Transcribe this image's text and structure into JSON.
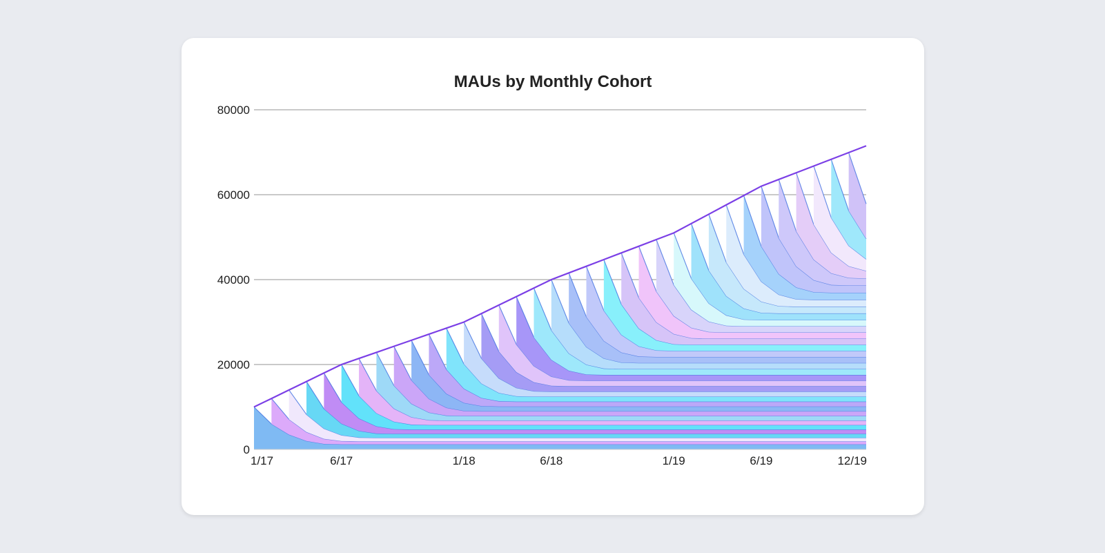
{
  "chart_data": {
    "type": "area",
    "title": "MAUs by Monthly Cohort",
    "xlabel": "",
    "ylabel": "",
    "ylim": [
      0,
      80000
    ],
    "y_ticks": [
      "0",
      "20000",
      "40000",
      "60000",
      "80000"
    ],
    "x_tick_labels": [
      {
        "label": "1/17",
        "month": "2017-01"
      },
      {
        "label": "6/17",
        "month": "2017-06"
      },
      {
        "label": "1/18",
        "month": "2018-01"
      },
      {
        "label": "6/18",
        "month": "2018-06"
      },
      {
        "label": "1/19",
        "month": "2019-01"
      },
      {
        "label": "6/19",
        "month": "2019-06"
      },
      {
        "label": "12/19",
        "month": "2019-12"
      }
    ],
    "x_range": [
      "2017-01",
      "2019-12"
    ],
    "grid": true,
    "stacked": true,
    "total_mau": [
      {
        "month": "2017-01",
        "value": 10000
      },
      {
        "month": "2017-06",
        "value": 20000
      },
      {
        "month": "2018-01",
        "value": 30000
      },
      {
        "month": "2018-06",
        "value": 40000
      },
      {
        "month": "2019-01",
        "value": 51000
      },
      {
        "month": "2019-06",
        "value": 62000
      },
      {
        "month": "2019-12",
        "value": 71500
      }
    ],
    "cohorts": {
      "count": 36,
      "first_cohort": "2017-01",
      "last_cohort": "2019-12",
      "retention_curve": [
        1.0,
        0.6,
        0.35,
        0.2,
        0.13
      ],
      "retention_floor": 0.12
    },
    "colors": [
      "#7fbaf3",
      "#dcaafa",
      "#f0e8fc",
      "#67d8f5",
      "#c08cf5",
      "#62e2fa",
      "#e4b4f8",
      "#9ed9f7",
      "#cba6f8",
      "#8db6f5",
      "#bca8f8",
      "#80e4fb",
      "#c6dcfb",
      "#a59cf5",
      "#e0c4fa",
      "#a796f8",
      "#9ee8fb",
      "#b6ddfb",
      "#a8c0f8",
      "#c1c9fa",
      "#88f0fb",
      "#d6c4f8",
      "#f0c4fa",
      "#d8d4fa",
      "#d7f8fb",
      "#9fe2fb",
      "#c6e8fb",
      "#dcecfc",
      "#a5d2fb",
      "#c0c4fa",
      "#cec8fa",
      "#e4cdf8",
      "#f2e8fc",
      "#9fe8fb",
      "#d0c2f8",
      "#b7c4f8"
    ],
    "line_color": "#3f6fe0",
    "top_line_color": "#7b3fe6"
  }
}
